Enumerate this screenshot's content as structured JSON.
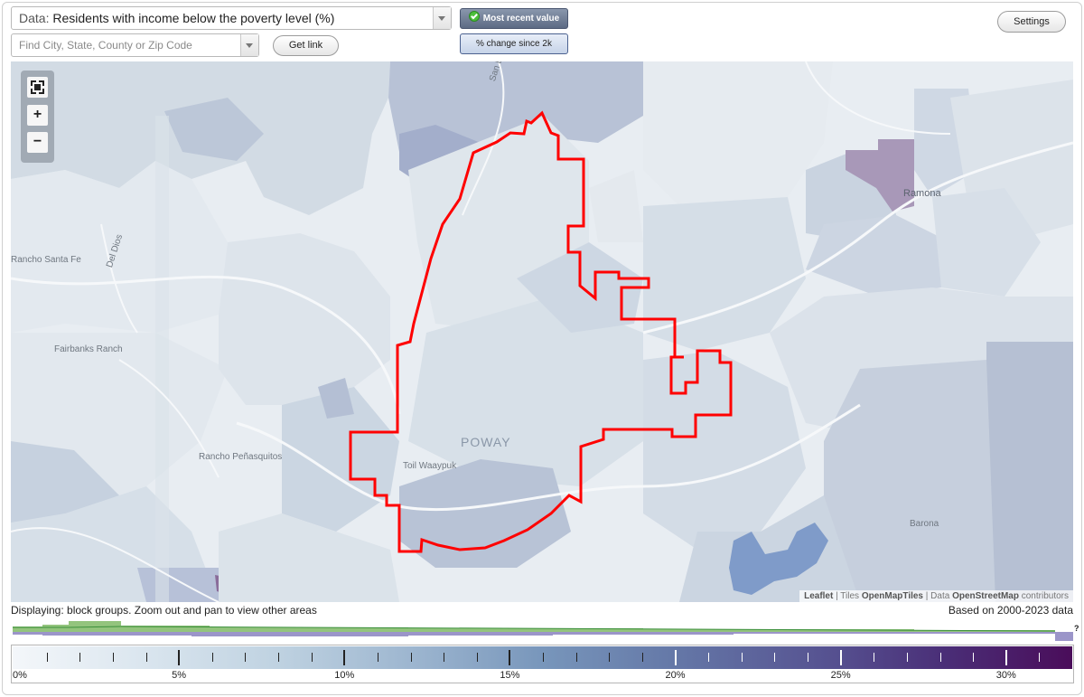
{
  "controls": {
    "data_prefix": "Data:",
    "data_value": "Residents with income below the poverty level (%)",
    "search_placeholder": "Find City, State, County or Zip Code",
    "get_link_label": "Get link",
    "toggle_recent_label": "Most recent value",
    "toggle_change_label": "% change since 2k",
    "settings_label": "Settings"
  },
  "map": {
    "labels": {
      "poway": "POWAY",
      "ramona": "Ramona",
      "rancho_santa_fe": "Rancho Santa Fe",
      "fairbanks_ranch": "Fairbanks Ranch",
      "rancho_penasquitos": "Rancho Peñasquitos",
      "tooth_waaypuk": "Toil Waaypuk",
      "barona": "Barona",
      "san_dieguito": "San Dieguito",
      "del_dios": "Del Dios"
    },
    "attribution": {
      "leaflet": "Leaflet",
      "sep1": " | Tiles ",
      "tiles": "OpenMapTiles",
      "sep2": " | Data ",
      "data": "OpenStreetMap",
      "suffix": " contributors"
    },
    "boundary_color": "#ff0000"
  },
  "footer": {
    "displaying": "Displaying: block groups. Zoom out and pan to view other areas",
    "based_on": "Based on 2000-2023 data",
    "help_mark": "?"
  },
  "legend": {
    "min": 0,
    "max": 32,
    "labels": [
      "0%",
      "5%",
      "10%",
      "15%",
      "20%",
      "25%",
      "30%"
    ],
    "label_values": [
      0,
      5,
      10,
      15,
      20,
      25,
      30
    ]
  }
}
